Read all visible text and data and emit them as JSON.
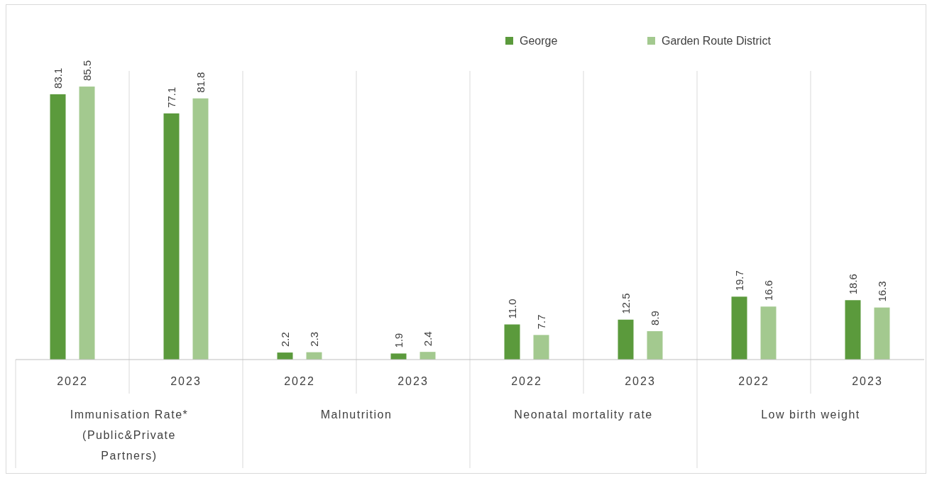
{
  "chart_data": {
    "type": "bar",
    "categories": [
      "2022",
      "2023",
      "2022",
      "2023",
      "2022",
      "2023",
      "2022",
      "2023"
    ],
    "annotations": [
      "Immunisation Rate* (Public&Private Partners)",
      "Malnutrition",
      "Neonatal mortality rate",
      "Low birth weight"
    ],
    "series": [
      {
        "name": "George",
        "color": "#5b9a3c",
        "values": [
          83.1,
          77.1,
          2.2,
          1.9,
          11.0,
          12.5,
          19.7,
          18.6
        ],
        "value_labels": [
          "83.1",
          "77.1",
          "2.2",
          "1.9",
          "11.0",
          "12.5",
          "19.7",
          "18.6"
        ]
      },
      {
        "name": "Garden Route District",
        "color": "#a3c98f",
        "values": [
          85.5,
          81.8,
          2.3,
          2.4,
          7.7,
          8.9,
          16.6,
          16.3
        ],
        "value_labels": [
          "85.5",
          "81.8",
          "2.3",
          "2.4",
          "7.7",
          "8.9",
          "16.6",
          "16.3"
        ]
      }
    ],
    "legend": "top right"
  }
}
